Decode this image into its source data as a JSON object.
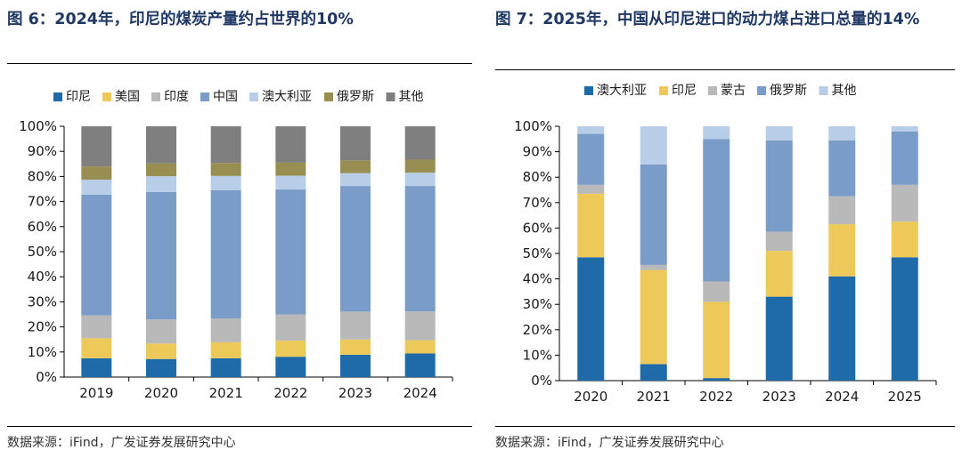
{
  "chart_data": [
    {
      "type": "bar",
      "stacked": true,
      "title": "图 6：2024年，印尼的煤炭产量约占世界的10%",
      "source": "数据来源：iFind，广发证券发展研究中心",
      "categories": [
        "2019",
        "2020",
        "2021",
        "2022",
        "2023",
        "2024"
      ],
      "ylim": [
        0,
        100
      ],
      "yticks": [
        "0%",
        "10%",
        "20%",
        "30%",
        "40%",
        "50%",
        "60%",
        "70%",
        "80%",
        "90%",
        "100%"
      ],
      "series": [
        {
          "name": "印尼",
          "color": "#1f6aa8",
          "values": [
            7.5,
            7.2,
            7.5,
            8.1,
            8.9,
            9.4
          ]
        },
        {
          "name": "美国",
          "color": "#ecc959",
          "values": [
            8.0,
            6.2,
            6.4,
            6.4,
            6.1,
            5.3
          ]
        },
        {
          "name": "印度",
          "color": "#b9b9b9",
          "values": [
            9.1,
            9.6,
            9.5,
            10.5,
            11.1,
            11.5
          ]
        },
        {
          "name": "中国",
          "color": "#7a9cc9",
          "values": [
            48.1,
            50.8,
            51.1,
            49.8,
            50.1,
            50.0
          ]
        },
        {
          "name": "澳大利亚",
          "color": "#b8cde7",
          "values": [
            6.0,
            6.3,
            5.7,
            5.5,
            5.1,
            5.3
          ]
        },
        {
          "name": "俄罗斯",
          "color": "#988e52",
          "values": [
            5.3,
            5.1,
            5.2,
            5.2,
            5.1,
            5.2
          ]
        },
        {
          "name": "其他",
          "color": "#7f7f7f",
          "values": [
            16.0,
            14.8,
            14.6,
            14.5,
            13.6,
            13.3
          ]
        }
      ]
    },
    {
      "type": "bar",
      "stacked": true,
      "title": "图 7：2025年，中国从印尼进口的动力煤占进口总量的14%",
      "source": "数据来源：iFind，广发证券发展研究中心",
      "categories": [
        "2020",
        "2021",
        "2022",
        "2023",
        "2024",
        "2025"
      ],
      "ylim": [
        0,
        100
      ],
      "yticks": [
        "0%",
        "10%",
        "20%",
        "30%",
        "40%",
        "50%",
        "60%",
        "70%",
        "80%",
        "90%",
        "100%"
      ],
      "series": [
        {
          "name": "澳大利亚",
          "color": "#1f6aa8",
          "values": [
            48.5,
            6.5,
            1.0,
            33.0,
            41.0,
            48.5
          ]
        },
        {
          "name": "印尼",
          "color": "#ecc959",
          "values": [
            25.0,
            37.0,
            30.0,
            18.0,
            20.5,
            14.0
          ]
        },
        {
          "name": "蒙古",
          "color": "#b9b9b9",
          "values": [
            3.5,
            2.0,
            8.0,
            7.5,
            11.0,
            14.5
          ]
        },
        {
          "name": "俄罗斯",
          "color": "#7a9cc9",
          "values": [
            20.0,
            39.5,
            56.0,
            36.0,
            22.0,
            21.0
          ]
        },
        {
          "name": "其他",
          "color": "#b8cde7",
          "values": [
            3.0,
            15.0,
            5.0,
            5.5,
            5.5,
            2.0
          ]
        }
      ]
    }
  ]
}
